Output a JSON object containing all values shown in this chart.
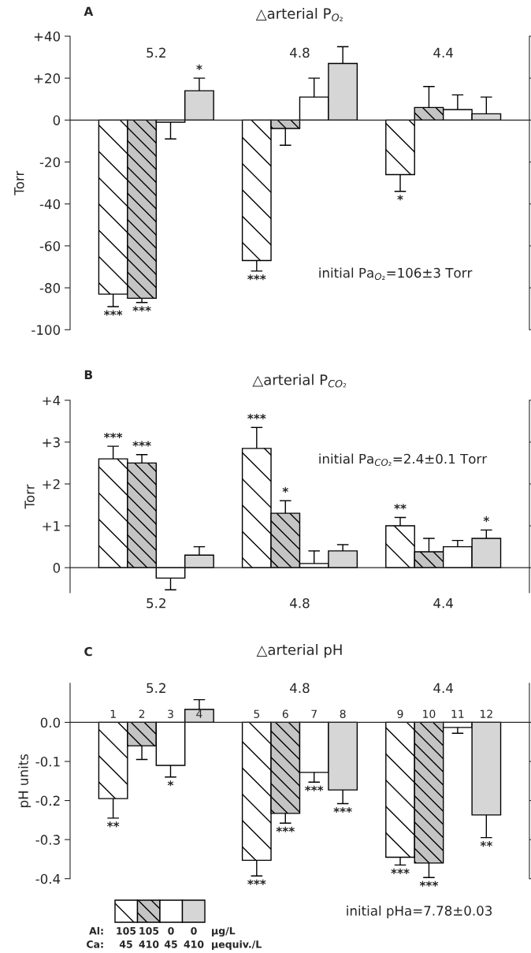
{
  "chart_data": [
    {
      "type": "bar",
      "title": "△arterial P$_{O₂}$",
      "ylabel": "Torr",
      "categories": [
        null,
        null,
        null,
        null,
        null,
        null,
        null,
        null,
        null,
        null,
        null,
        null,
        null,
        null,
        null,
        null
      ],
      "values": [
        null,
        -83,
        -85,
        -1,
        14,
        null,
        -67,
        -4,
        11,
        27,
        null,
        -26,
        6,
        5,
        3,
        null
      ],
      "colors": [
        "#ffffff",
        "#ffffff",
        "#c4c4c4",
        "#ffffff",
        "#d6d6d6",
        "#ffffff",
        "#ffffff",
        "#c4c4c4",
        "#ffffff",
        "#d6d6d6",
        "#ffffff",
        "#ffffff",
        "#c4c4c4",
        "#ffffff",
        "#d6d6d6",
        "#ffffff"
      ],
      "errors": [
        null,
        [
          -89,
          -83
        ],
        [
          -87,
          -85
        ],
        [
          -9,
          -1
        ],
        [
          14,
          20
        ],
        null,
        [
          -72,
          -67
        ],
        [
          -12,
          -4
        ],
        [
          11,
          20
        ],
        [
          27,
          35
        ],
        null,
        [
          -34,
          -26
        ],
        [
          6,
          16
        ],
        [
          5,
          12
        ],
        [
          3,
          11
        ],
        null
      ],
      "value_labels": [
        null,
        "***",
        "***",
        null,
        "*",
        null,
        "***",
        null,
        null,
        null,
        null,
        "*",
        null,
        null,
        null,
        null
      ],
      "ylim": [
        -100,
        40
      ],
      "yticks": [
        {
          "value": 40,
          "label": "+40"
        },
        {
          "value": 20,
          "label": "+20"
        },
        0,
        {
          "value": -20,
          "label": "-20"
        },
        {
          "value": -40,
          "label": "-40"
        },
        {
          "value": -60,
          "label": "-60"
        },
        {
          "value": -80,
          "label": "-80"
        },
        {
          "value": -100,
          "label": "-100"
        }
      ],
      "annotations": [
        "A",
        "5.2",
        "4.8",
        "4.4",
        "initial Pa$_{O₂}$=106±3 Torr"
      ]
    },
    {
      "type": "bar",
      "title": "△arterial P$_{CO₂}$",
      "ylabel": "Torr",
      "categories": [
        null,
        null,
        null,
        null,
        null,
        null,
        null,
        null,
        null,
        null,
        null,
        null,
        null,
        null,
        null,
        null
      ],
      "values": [
        null,
        2.6,
        2.5,
        -0.25,
        0.3,
        null,
        2.85,
        1.3,
        0.1,
        0.4,
        null,
        1.0,
        0.38,
        0.5,
        0.7,
        null
      ],
      "colors": [
        "#ffffff",
        "#ffffff",
        "#c4c4c4",
        "#ffffff",
        "#d6d6d6",
        "#ffffff",
        "#ffffff",
        "#c4c4c4",
        "#ffffff",
        "#d6d6d6",
        "#ffffff",
        "#ffffff",
        "#c4c4c4",
        "#ffffff",
        "#d6d6d6",
        "#ffffff"
      ],
      "errors": [
        null,
        [
          2.6,
          2.9
        ],
        [
          2.5,
          2.7
        ],
        [
          -0.53,
          -0.25
        ],
        [
          0.3,
          0.5
        ],
        null,
        [
          2.85,
          3.35
        ],
        [
          1.3,
          1.6
        ],
        [
          0.1,
          0.4
        ],
        [
          0.4,
          0.55
        ],
        null,
        [
          1.0,
          1.2
        ],
        [
          0.38,
          0.7
        ],
        [
          0.5,
          0.65
        ],
        [
          0.7,
          0.9
        ],
        null
      ],
      "value_labels": [
        null,
        "***",
        "***",
        null,
        null,
        null,
        "***",
        "*",
        null,
        null,
        null,
        "**",
        null,
        null,
        "*",
        null
      ],
      "ylim": [
        -0.6,
        4
      ],
      "yticks": [
        {
          "value": 4,
          "label": "+4"
        },
        {
          "value": 3,
          "label": "+3"
        },
        {
          "value": 2,
          "label": "+2"
        },
        {
          "value": 1,
          "label": "+1"
        },
        0
      ],
      "annotations": [
        "B",
        "5.2",
        "4.8",
        "4.4",
        "initial Pa$_{CO₂}$=2.4±0.1 Torr"
      ]
    },
    {
      "type": "bar",
      "title": "△arterial pH",
      "ylabel": "pH units",
      "categories": [
        null,
        "1",
        "2",
        "3",
        "4",
        null,
        "5",
        "6",
        "7",
        "8",
        null,
        "9",
        "10",
        "11",
        "12",
        null
      ],
      "values": [
        null,
        -0.195,
        -0.06,
        -0.11,
        0.033,
        null,
        -0.353,
        -0.233,
        -0.128,
        -0.173,
        null,
        -0.345,
        -0.36,
        -0.013,
        -0.237,
        null
      ],
      "colors": [
        "#ffffff",
        "#ffffff",
        "#c4c4c4",
        "#ffffff",
        "#d6d6d6",
        "#ffffff",
        "#ffffff",
        "#c4c4c4",
        "#ffffff",
        "#d6d6d6",
        "#ffffff",
        "#ffffff",
        "#c4c4c4",
        "#ffffff",
        "#d6d6d6",
        "#ffffff"
      ],
      "errors": [
        null,
        [
          -0.245,
          -0.195
        ],
        [
          -0.095,
          -0.06
        ],
        [
          -0.14,
          -0.11
        ],
        [
          0.033,
          0.058
        ],
        null,
        [
          -0.393,
          -0.353
        ],
        [
          -0.258,
          -0.233
        ],
        [
          -0.153,
          -0.128
        ],
        [
          -0.208,
          -0.173
        ],
        null,
        [
          -0.365,
          -0.345
        ],
        [
          -0.397,
          -0.36
        ],
        [
          -0.028,
          -0.013
        ],
        [
          -0.295,
          -0.237
        ],
        null
      ],
      "value_labels": [
        null,
        "**",
        null,
        "*",
        null,
        null,
        "***",
        "***",
        "***",
        "***",
        null,
        "***",
        "***",
        null,
        "**",
        null
      ],
      "ylim": [
        -0.4,
        0.1
      ],
      "yticks": [
        {
          "value": 0,
          "label": "0.0"
        },
        {
          "value": -0.1,
          "label": "-0.1"
        },
        {
          "value": -0.2,
          "label": "-0.2"
        },
        {
          "value": -0.3,
          "label": "-0.3"
        },
        {
          "value": -0.4,
          "label": "-0.4"
        }
      ],
      "annotations": [
        "C",
        "5.2",
        "4.8",
        "4.4",
        "initial pHa=7.78±0.03",
        "Al:",
        "105",
        "105",
        "0",
        "0",
        "µg/L",
        "Ca:",
        "45",
        "410",
        "45",
        "410",
        "µequiv./L"
      ]
    }
  ]
}
